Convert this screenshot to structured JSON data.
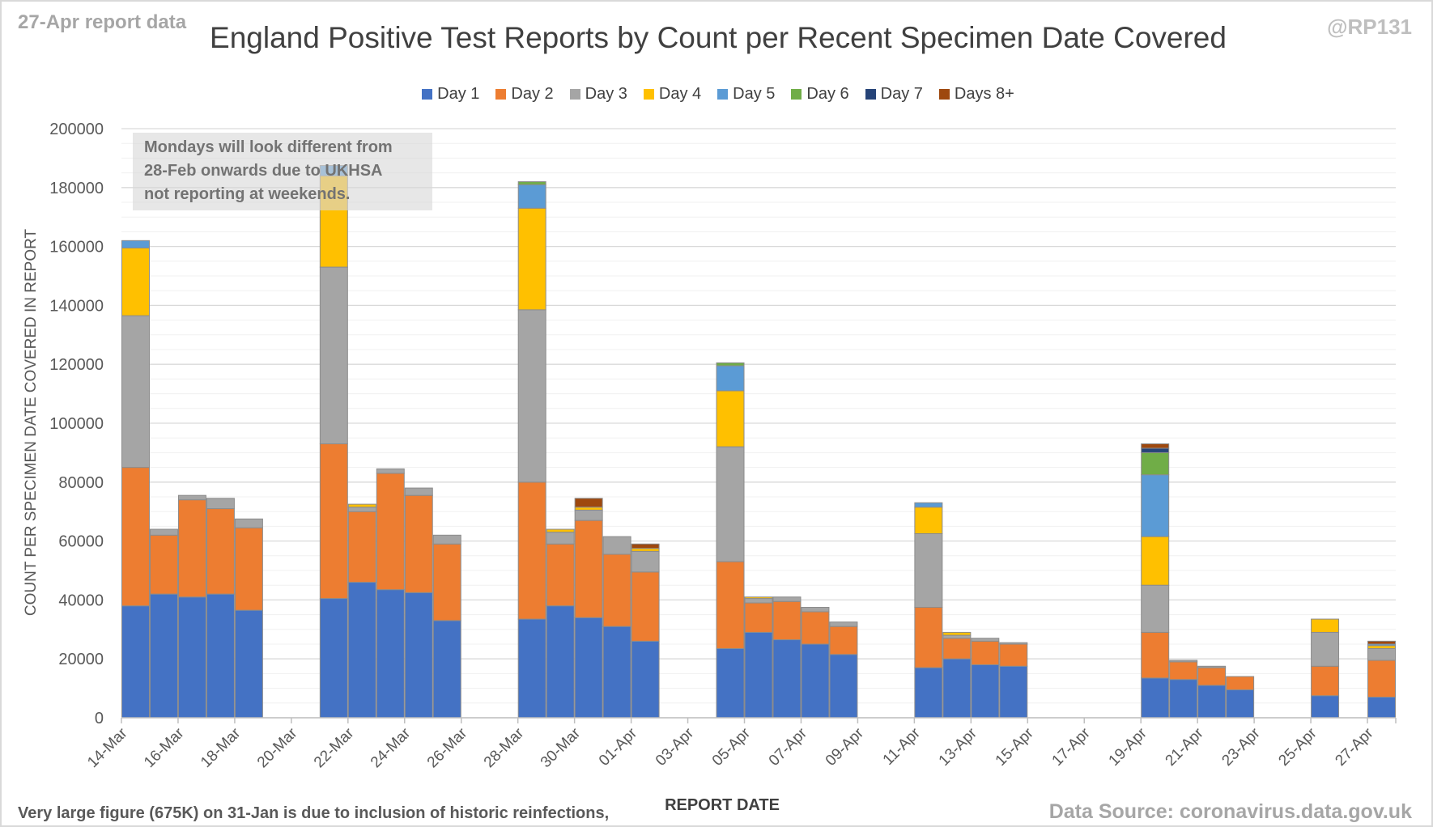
{
  "header": {
    "report_tag": "27-Apr report data",
    "handle": "@RP131",
    "title": "England Positive Test Reports by Count per Recent Specimen Date Covered"
  },
  "note": {
    "lines": [
      "Mondays will look different from",
      "28-Feb onwards due to UKHSA",
      "not reporting at weekends."
    ]
  },
  "footer": {
    "footnote": "Very large figure (675K) on 31-Jan is due to inclusion of historic reinfections,",
    "source": "Data Source: coronavirus.data.gov.uk"
  },
  "chart_data": {
    "type": "bar",
    "stacked": true,
    "title": "England Positive Test Reports by Count per Recent Specimen Date Covered",
    "xlabel": "REPORT DATE",
    "ylabel": "COUNT PER SPECIMEN DATE COVERED IN REPORT",
    "ylim": [
      0,
      200000
    ],
    "yticks": [
      0,
      20000,
      40000,
      60000,
      80000,
      100000,
      120000,
      140000,
      160000,
      180000,
      200000
    ],
    "grid": true,
    "legend_position": "top",
    "categories": [
      "14-Mar",
      "15-Mar",
      "16-Mar",
      "17-Mar",
      "18-Mar",
      "19-Mar",
      "20-Mar",
      "21-Mar",
      "22-Mar",
      "23-Mar",
      "24-Mar",
      "25-Mar",
      "26-Mar",
      "27-Mar",
      "28-Mar",
      "29-Mar",
      "30-Mar",
      "31-Mar",
      "01-Apr",
      "02-Apr",
      "03-Apr",
      "04-Apr",
      "05-Apr",
      "06-Apr",
      "07-Apr",
      "08-Apr",
      "09-Apr",
      "10-Apr",
      "11-Apr",
      "12-Apr",
      "13-Apr",
      "14-Apr",
      "15-Apr",
      "16-Apr",
      "17-Apr",
      "18-Apr",
      "19-Apr",
      "20-Apr",
      "21-Apr",
      "22-Apr",
      "23-Apr",
      "24-Apr",
      "25-Apr",
      "26-Apr",
      "27-Apr"
    ],
    "tick_labels": [
      "14-Mar",
      "16-Mar",
      "18-Mar",
      "20-Mar",
      "22-Mar",
      "24-Mar",
      "26-Mar",
      "28-Mar",
      "30-Mar",
      "01-Apr",
      "03-Apr",
      "05-Apr",
      "07-Apr",
      "09-Apr",
      "11-Apr",
      "13-Apr",
      "15-Apr",
      "17-Apr",
      "19-Apr",
      "21-Apr",
      "23-Apr",
      "25-Apr",
      "27-Apr"
    ],
    "series": [
      {
        "name": "Day 1",
        "color": "#4472c4",
        "values": [
          38000,
          42000,
          41000,
          42000,
          36500,
          0,
          0,
          40500,
          46000,
          43500,
          42500,
          33000,
          0,
          0,
          33500,
          38000,
          34000,
          31000,
          26000,
          0,
          0,
          23500,
          29000,
          26500,
          25000,
          21500,
          0,
          0,
          17000,
          20000,
          18000,
          17500,
          0,
          0,
          0,
          0,
          13500,
          13000,
          11000,
          9500,
          0,
          0,
          7500,
          0,
          7000
        ]
      },
      {
        "name": "Day 2",
        "color": "#ed7d31",
        "values": [
          47000,
          20000,
          33000,
          29000,
          28000,
          0,
          0,
          52500,
          24000,
          39500,
          33000,
          26000,
          0,
          0,
          46500,
          21000,
          33000,
          24500,
          23500,
          0,
          0,
          29500,
          10000,
          13000,
          11000,
          9500,
          0,
          0,
          20500,
          7000,
          8000,
          7500,
          0,
          0,
          0,
          0,
          15500,
          6000,
          6000,
          4500,
          0,
          0,
          10000,
          0,
          12500
        ]
      },
      {
        "name": "Day 3",
        "color": "#a5a5a5",
        "values": [
          51500,
          2000,
          1500,
          3500,
          3000,
          0,
          0,
          60000,
          1500,
          1500,
          2500,
          3000,
          0,
          0,
          58500,
          4000,
          3500,
          6000,
          7000,
          0,
          0,
          39000,
          1500,
          1500,
          1500,
          1500,
          0,
          0,
          25000,
          1000,
          1000,
          500,
          0,
          0,
          0,
          0,
          16000,
          500,
          500,
          0,
          0,
          0,
          11500,
          0,
          4000
        ]
      },
      {
        "name": "Day 4",
        "color": "#ffc000",
        "values": [
          23000,
          0,
          0,
          0,
          0,
          0,
          0,
          31000,
          1000,
          0,
          0,
          0,
          0,
          0,
          34500,
          1000,
          1000,
          0,
          1000,
          0,
          0,
          19000,
          500,
          0,
          0,
          0,
          0,
          0,
          9000,
          1000,
          0,
          0,
          0,
          0,
          0,
          0,
          16500,
          0,
          0,
          0,
          0,
          0,
          4500,
          0,
          1000
        ]
      },
      {
        "name": "Day 5",
        "color": "#5b9bd5",
        "values": [
          2500,
          0,
          0,
          0,
          0,
          0,
          0,
          3500,
          0,
          0,
          0,
          0,
          0,
          0,
          8000,
          0,
          0,
          0,
          0,
          0,
          0,
          8500,
          0,
          0,
          0,
          0,
          0,
          0,
          1500,
          0,
          0,
          0,
          0,
          0,
          0,
          0,
          21000,
          0,
          0,
          0,
          0,
          0,
          0,
          0,
          500
        ]
      },
      {
        "name": "Day 6",
        "color": "#70ad47",
        "values": [
          0,
          0,
          0,
          0,
          0,
          0,
          0,
          0,
          0,
          0,
          0,
          0,
          0,
          0,
          1000,
          0,
          0,
          0,
          0,
          0,
          0,
          1000,
          0,
          0,
          0,
          0,
          0,
          0,
          0,
          0,
          0,
          0,
          0,
          0,
          0,
          0,
          7500,
          0,
          0,
          0,
          0,
          0,
          0,
          0,
          0
        ]
      },
      {
        "name": "Day 7",
        "color": "#264478",
        "values": [
          0,
          0,
          0,
          0,
          0,
          0,
          0,
          0,
          0,
          0,
          0,
          0,
          0,
          0,
          0,
          0,
          0,
          0,
          0,
          0,
          0,
          0,
          0,
          0,
          0,
          0,
          0,
          0,
          0,
          0,
          0,
          0,
          0,
          0,
          0,
          0,
          1500,
          0,
          0,
          0,
          0,
          0,
          0,
          0,
          0
        ]
      },
      {
        "name": "Days 8+",
        "color": "#9e480e",
        "values": [
          0,
          0,
          0,
          0,
          0,
          0,
          0,
          0,
          0,
          0,
          0,
          0,
          0,
          0,
          0,
          0,
          3000,
          0,
          1500,
          0,
          0,
          0,
          0,
          0,
          0,
          0,
          0,
          0,
          0,
          0,
          0,
          0,
          0,
          0,
          0,
          0,
          1500,
          0,
          0,
          0,
          0,
          0,
          0,
          0,
          1000
        ]
      }
    ]
  }
}
